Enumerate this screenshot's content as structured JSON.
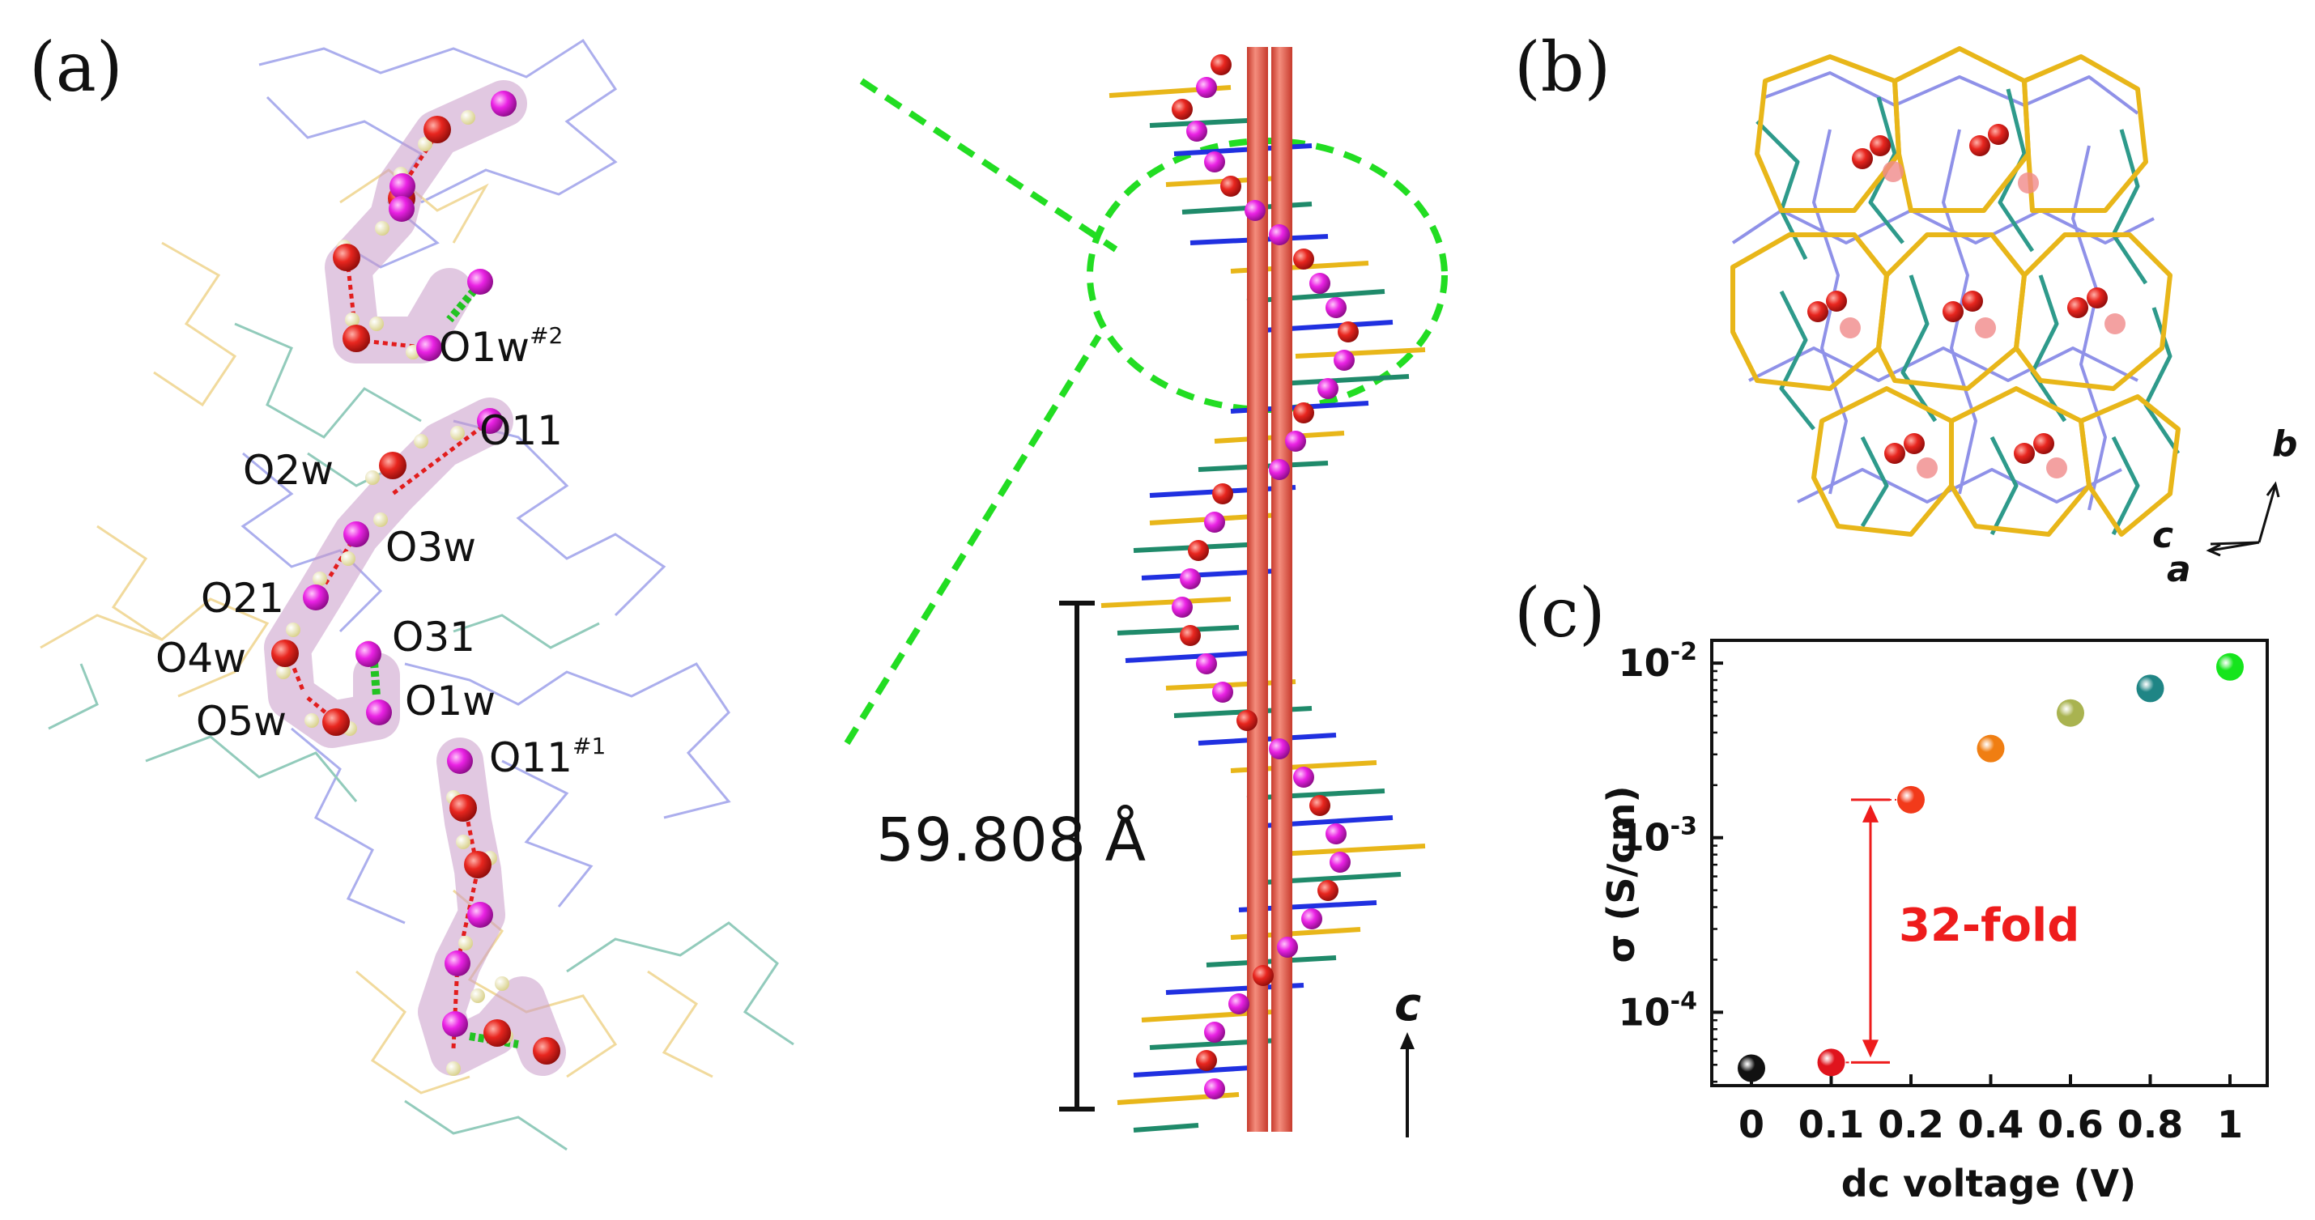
{
  "panels": {
    "a_label": "(a)",
    "b_label": "(b)",
    "c_label": "(c)"
  },
  "atom_labels": [
    {
      "text": "O1w",
      "sup": "#2"
    },
    {
      "text": "O11",
      "sup": ""
    },
    {
      "text": "O2w",
      "sup": ""
    },
    {
      "text": "O3w",
      "sup": ""
    },
    {
      "text": "O21",
      "sup": ""
    },
    {
      "text": "O31",
      "sup": ""
    },
    {
      "text": "O4w",
      "sup": ""
    },
    {
      "text": "O1w",
      "sup": ""
    },
    {
      "text": "O5w",
      "sup": ""
    },
    {
      "text": "O11",
      "sup": "#1"
    }
  ],
  "helix": {
    "pitch_label": "59.808 Å",
    "axis_label": "c"
  },
  "orientation": {
    "b": "b",
    "c": "c",
    "a": "a"
  },
  "colors": {
    "oxygen_water": "#e21d1d",
    "oxygen_ligand": "#e81ee3",
    "hydrogen": "#f3efb0",
    "hbond_green": "#22c322",
    "helix_shade": "#c89bc9",
    "ligand_blue": "#8f91e8",
    "ligand_yellow": "#efd48c",
    "ligand_teal": "#7fc2b0",
    "column_red": "#e8604f",
    "dash_green": "#22dd22",
    "fold_red": "#ee1c1c"
  },
  "chart_data": {
    "type": "scatter",
    "title": "",
    "xlabel": "dc voltage (V)",
    "ylabel": "σ (S/cm)",
    "yscale": "log",
    "x_ticks": [
      "0",
      "0.1",
      "0.2",
      "0.4",
      "0.6",
      "0.8",
      "1"
    ],
    "y_ticks": [
      {
        "value": 0.0001,
        "base": "10",
        "exp": "-4"
      },
      {
        "value": 0.001,
        "base": "10",
        "exp": "-3"
      },
      {
        "value": 0.01,
        "base": "10",
        "exp": "-2"
      }
    ],
    "ylim": [
      3.8e-05,
      0.0135
    ],
    "points": [
      {
        "x": 0,
        "y": 4.78e-05,
        "color": "#111111"
      },
      {
        "x": 0.1,
        "y": 5.16e-05,
        "color": "#e0141d"
      },
      {
        "x": 0.2,
        "y": 0.00165,
        "color": "#f23a1a"
      },
      {
        "x": 0.4,
        "y": 0.00324,
        "color": "#f07e12"
      },
      {
        "x": 0.6,
        "y": 0.00518,
        "color": "#a9b350"
      },
      {
        "x": 0.8,
        "y": 0.00716,
        "color": "#1f8585"
      },
      {
        "x": 1,
        "y": 0.00951,
        "color": "#15e51c"
      }
    ],
    "annotation": {
      "text": "32-fold",
      "color": "#ee1c1c"
    },
    "grid": false,
    "legend": "none"
  }
}
